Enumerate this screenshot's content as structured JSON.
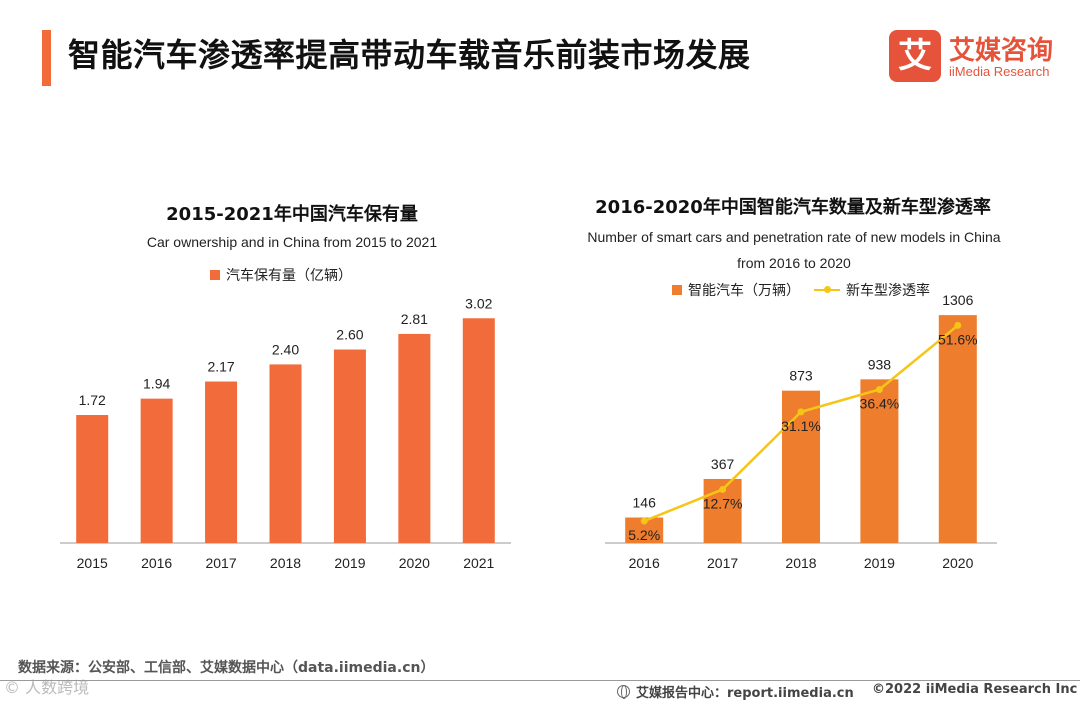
{
  "page": {
    "title": "智能汽车渗透率提高带动车载音乐前装市场发展",
    "logo": {
      "mark": "艾",
      "name_cn": "艾媒咨询",
      "name_en": "iiMedia Research"
    },
    "source": "数据来源：公安部、工信部、艾媒数据中心（data.iimedia.cn）",
    "watermark": "©  人数跨境",
    "footer": {
      "report": "艾媒报告中心：report.iimedia.cn",
      "copyright": "©2022  iiMedia Research  Inc"
    }
  },
  "colors": {
    "accent": "#f26b3a",
    "bar_left": "#f26b3a",
    "bar_right": "#ee7d2d",
    "line": "#f5c518",
    "axis": "#999999"
  },
  "chart_data": [
    {
      "type": "bar",
      "title": "2015-2021年中国汽车保有量",
      "subtitle": "Car ownership and in China from 2015 to 2021",
      "legend": "汽车保有量（亿辆）",
      "categories": [
        "2015",
        "2016",
        "2017",
        "2018",
        "2019",
        "2020",
        "2021"
      ],
      "values": [
        1.72,
        1.94,
        2.17,
        2.4,
        2.6,
        2.81,
        3.02
      ],
      "labels": [
        "1.72",
        "1.94",
        "2.17",
        "2.40",
        "2.60",
        "2.81",
        "3.02"
      ],
      "ylim": [
        0,
        3.4
      ]
    },
    {
      "type": "bar+line",
      "title": "2016-2020年中国智能汽车数量及新车型渗透率",
      "subtitle": "Number of smart cars and penetration rate of new models in China from 2016 to 2020",
      "legend": [
        "智能汽车（万辆）",
        "新车型渗透率"
      ],
      "categories": [
        "2016",
        "2017",
        "2018",
        "2019",
        "2020"
      ],
      "bars": {
        "values": [
          146,
          367,
          873,
          938,
          1306
        ],
        "labels": [
          "146",
          "367",
          "873",
          "938",
          "1306"
        ],
        "ylim": [
          0,
          1450
        ]
      },
      "line": {
        "values": [
          5.2,
          12.7,
          31.1,
          36.4,
          51.6
        ],
        "labels": [
          "5.2%",
          "12.7%",
          "31.1%",
          "36.4%",
          "51.6%"
        ],
        "ylim": [
          0,
          60
        ]
      }
    }
  ]
}
